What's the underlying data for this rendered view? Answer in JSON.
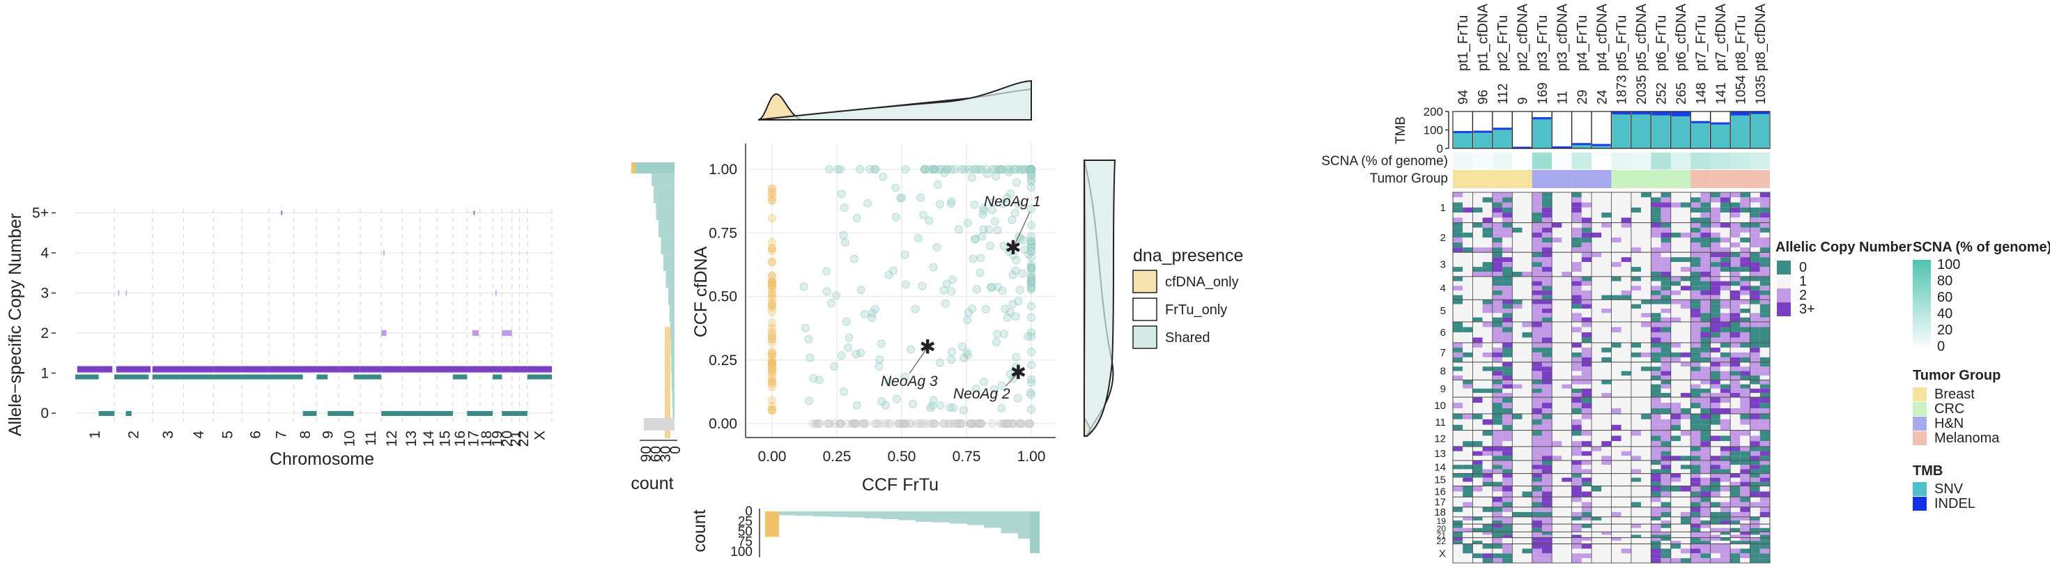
{
  "colors": {
    "teal": "#3a8a86",
    "light_teal": "#9fd0c8",
    "orange": "#f2c26b",
    "beige": "#f7e3b0",
    "purple": "#7b3fc4",
    "lavender": "#c29ae6",
    "grey": "#c8c8c8",
    "cyan": "#4fc0c8",
    "blue": "#1530e6",
    "breast": "#f7e3a0",
    "crc": "#c8f2c0",
    "hn": "#a8a8ec",
    "melanoma": "#f2c0b0"
  },
  "chart_data": [
    {
      "type": "scatter",
      "xlabel": "Chromosome",
      "ylabel": "Allele−specific Copy Number",
      "ytick_labels": [
        "0",
        "1",
        "2",
        "3",
        "4",
        "5+"
      ],
      "yvalues": [
        0,
        1,
        2,
        3,
        4,
        5
      ],
      "xtick_labels": [
        "1",
        "2",
        "3",
        "4",
        "5",
        "6",
        "7",
        "8",
        "9",
        "10",
        "11",
        "12",
        "13",
        "14",
        "15",
        "16",
        "17",
        "18",
        "19",
        "20",
        "21",
        "22",
        "X"
      ],
      "chrom_sizes_mb": [
        249,
        243,
        198,
        190,
        181,
        171,
        159,
        146,
        141,
        136,
        135,
        133,
        114,
        107,
        102,
        90,
        83,
        80,
        59,
        64,
        47,
        51,
        156
      ],
      "segments": [
        {
          "chrom": 1,
          "start": 0.05,
          "end": 0.95,
          "cn": 1,
          "allele": "major"
        },
        {
          "chrom": 2,
          "start": 0.05,
          "end": 0.95,
          "cn": 1,
          "allele": "major"
        },
        {
          "chrom": 3,
          "start": 0.0,
          "end": 1.0,
          "cn": 1,
          "allele": "major"
        },
        {
          "chrom": 4,
          "start": 0.0,
          "end": 1.0,
          "cn": 1,
          "allele": "major"
        },
        {
          "chrom": 5,
          "start": 0.0,
          "end": 1.0,
          "cn": 1,
          "allele": "major"
        },
        {
          "chrom": 6,
          "start": 0.0,
          "end": 1.0,
          "cn": 1,
          "allele": "major"
        },
        {
          "chrom": 7,
          "start": 0.0,
          "end": 1.0,
          "cn": 1,
          "allele": "major"
        },
        {
          "chrom": 8,
          "start": 0.0,
          "end": 1.0,
          "cn": 1,
          "allele": "major"
        },
        {
          "chrom": 9,
          "start": 0.0,
          "end": 1.0,
          "cn": 1,
          "allele": "major"
        },
        {
          "chrom": 10,
          "start": 0.0,
          "end": 1.0,
          "cn": 1,
          "allele": "major"
        },
        {
          "chrom": 11,
          "start": 0.0,
          "end": 1.0,
          "cn": 1,
          "allele": "major"
        },
        {
          "chrom": 12,
          "start": 0.0,
          "end": 1.0,
          "cn": 1,
          "allele": "major"
        },
        {
          "chrom": 13,
          "start": 0.0,
          "end": 1.0,
          "cn": 1,
          "allele": "major"
        },
        {
          "chrom": 14,
          "start": 0.0,
          "end": 1.0,
          "cn": 1,
          "allele": "major"
        },
        {
          "chrom": 15,
          "start": 0.0,
          "end": 1.0,
          "cn": 1,
          "allele": "major"
        },
        {
          "chrom": 16,
          "start": 0.0,
          "end": 1.0,
          "cn": 1,
          "allele": "major"
        },
        {
          "chrom": 17,
          "start": 0.0,
          "end": 1.0,
          "cn": 1,
          "allele": "major"
        },
        {
          "chrom": 18,
          "start": 0.0,
          "end": 1.0,
          "cn": 1,
          "allele": "major"
        },
        {
          "chrom": 19,
          "start": 0.0,
          "end": 1.0,
          "cn": 1,
          "allele": "major"
        },
        {
          "chrom": 20,
          "start": 0.0,
          "end": 1.0,
          "cn": 1,
          "allele": "major"
        },
        {
          "chrom": 21,
          "start": 0.0,
          "end": 1.0,
          "cn": 1,
          "allele": "major"
        },
        {
          "chrom": 22,
          "start": 0.0,
          "end": 1.0,
          "cn": 1,
          "allele": "major"
        },
        {
          "chrom": 23,
          "start": 0.0,
          "end": 1.0,
          "cn": 1,
          "allele": "major"
        },
        {
          "chrom": 1,
          "start": 0.0,
          "end": 0.6,
          "cn": 1,
          "allele": "minor"
        },
        {
          "chrom": 1,
          "start": 0.6,
          "end": 1.0,
          "cn": 0,
          "allele": "minor"
        },
        {
          "chrom": 2,
          "start": 0.0,
          "end": 0.9,
          "cn": 1,
          "allele": "minor"
        },
        {
          "chrom": 2,
          "start": 0.3,
          "end": 0.45,
          "cn": 0,
          "allele": "minor"
        },
        {
          "chrom": 3,
          "start": 0.0,
          "end": 1.0,
          "cn": 1,
          "allele": "minor"
        },
        {
          "chrom": 4,
          "start": 0.0,
          "end": 1.0,
          "cn": 1,
          "allele": "minor"
        },
        {
          "chrom": 5,
          "start": 0.0,
          "end": 1.0,
          "cn": 1,
          "allele": "minor"
        },
        {
          "chrom": 6,
          "start": 0.0,
          "end": 1.0,
          "cn": 1,
          "allele": "minor"
        },
        {
          "chrom": 7,
          "start": 0.0,
          "end": 1.0,
          "cn": 1,
          "allele": "minor"
        },
        {
          "chrom": 8,
          "start": 0.0,
          "end": 0.4,
          "cn": 1,
          "allele": "minor"
        },
        {
          "chrom": 8,
          "start": 0.4,
          "end": 1.0,
          "cn": 0,
          "allele": "minor"
        },
        {
          "chrom": 9,
          "start": 0.0,
          "end": 0.5,
          "cn": 1,
          "allele": "minor"
        },
        {
          "chrom": 9,
          "start": 0.5,
          "end": 1.0,
          "cn": 0,
          "allele": "minor"
        },
        {
          "chrom": 10,
          "start": 0.0,
          "end": 0.7,
          "cn": 0,
          "allele": "minor"
        },
        {
          "chrom": 10,
          "start": 0.7,
          "end": 1.0,
          "cn": 1,
          "allele": "minor"
        },
        {
          "chrom": 11,
          "start": 0.0,
          "end": 1.0,
          "cn": 1,
          "allele": "minor"
        },
        {
          "chrom": 12,
          "start": 0.0,
          "end": 1.0,
          "cn": 0,
          "allele": "minor"
        },
        {
          "chrom": 13,
          "start": 0.0,
          "end": 1.0,
          "cn": 0,
          "allele": "minor"
        },
        {
          "chrom": 14,
          "start": 0.0,
          "end": 1.0,
          "cn": 0,
          "allele": "minor"
        },
        {
          "chrom": 15,
          "start": 0.0,
          "end": 1.0,
          "cn": 0,
          "allele": "minor"
        },
        {
          "chrom": 16,
          "start": 0.0,
          "end": 1.0,
          "cn": 1,
          "allele": "minor"
        },
        {
          "chrom": 17,
          "start": 0.0,
          "end": 1.0,
          "cn": 0,
          "allele": "minor"
        },
        {
          "chrom": 18,
          "start": 0.0,
          "end": 1.0,
          "cn": 0,
          "allele": "minor"
        },
        {
          "chrom": 19,
          "start": 0.0,
          "end": 1.0,
          "cn": 1,
          "allele": "minor"
        },
        {
          "chrom": 20,
          "start": 0.0,
          "end": 1.0,
          "cn": 0,
          "allele": "minor"
        },
        {
          "chrom": 21,
          "start": 0.0,
          "end": 1.0,
          "cn": 0,
          "allele": "minor"
        },
        {
          "chrom": 22,
          "start": 0.0,
          "end": 1.0,
          "cn": 0,
          "allele": "minor"
        },
        {
          "chrom": 23,
          "start": 0.0,
          "end": 1.0,
          "cn": 1,
          "allele": "minor"
        },
        {
          "chrom": 12,
          "start": 0.0,
          "end": 0.25,
          "cn": 2,
          "allele": "major"
        },
        {
          "chrom": 17,
          "start": 0.4,
          "end": 0.9,
          "cn": 2,
          "allele": "major"
        },
        {
          "chrom": 20,
          "start": 0.0,
          "end": 1.0,
          "cn": 2,
          "allele": "major"
        },
        {
          "chrom": 2,
          "start": 0.1,
          "end": 0.12,
          "cn": 3,
          "allele": "major"
        },
        {
          "chrom": 2,
          "start": 0.3,
          "end": 0.32,
          "cn": 3,
          "allele": "major"
        },
        {
          "chrom": 19,
          "start": 0.3,
          "end": 0.4,
          "cn": 3,
          "allele": "major"
        },
        {
          "chrom": 12,
          "start": 0.1,
          "end": 0.12,
          "cn": 4,
          "allele": "major"
        },
        {
          "chrom": 7,
          "start": 0.5,
          "end": 0.54,
          "cn": 5,
          "allele": "major"
        },
        {
          "chrom": 17,
          "start": 0.5,
          "end": 0.54,
          "cn": 5,
          "allele": "major"
        }
      ]
    },
    {
      "type": "scatter",
      "xlabel": "CCF FrTu",
      "ylabel": "CCF cfDNA",
      "xlim": [
        0,
        1
      ],
      "ylim": [
        0,
        1
      ],
      "xticks": [
        "0.00",
        "0.25",
        "0.50",
        "0.75",
        "1.00"
      ],
      "yticks": [
        "0.00",
        "0.25",
        "0.50",
        "0.75",
        "1.00"
      ],
      "legend_title": "dna_presence",
      "legend_position": "right",
      "categories": [
        "cfDNA_only",
        "FrTu_only",
        "Shared"
      ],
      "annotations": [
        {
          "label": "NeoAg 1",
          "x": 0.93,
          "y": 0.69
        },
        {
          "label": "NeoAg 2",
          "x": 0.95,
          "y": 0.2
        },
        {
          "label": "NeoAg 3",
          "x": 0.6,
          "y": 0.3
        }
      ],
      "marginal_top_label": "count",
      "marginal_top_ticks": [
        "0",
        "25",
        "50",
        "75",
        "100"
      ],
      "marginal_left_label": "count",
      "marginal_left_ticks": [
        "90",
        "60",
        "30",
        "0"
      ],
      "hist_x_cfDNA_only": [
        78
      ],
      "hist_x_shared": [
        4,
        6,
        8,
        10,
        12,
        15,
        18,
        22,
        28,
        30,
        35,
        40,
        50,
        70,
        90
      ],
      "hist_y_shared": [
        2,
        4,
        6,
        8,
        10,
        12,
        15,
        20,
        30,
        40,
        50,
        60,
        70,
        80,
        88
      ]
    },
    {
      "type": "heatmap",
      "samples": [
        "pt1_FrTu",
        "pt1_cfDNA",
        "pt2_FrTu",
        "pt2_cfDNA",
        "pt3_FrTu",
        "pt3_cfDNA",
        "pt4_FrTu",
        "pt4_cfDNA",
        "pt5_FrTu",
        "pt5_cfDNA",
        "pt6_FrTu",
        "pt6_cfDNA",
        "pt7_FrTu",
        "pt7_cfDNA",
        "pt8_FrTu",
        "pt8_cfDNA"
      ],
      "tmb_values": [
        "94",
        "96",
        "112",
        "9",
        "169",
        "11",
        "29",
        "24",
        "1873",
        "2035",
        "252",
        "265",
        "148",
        "141",
        "1054",
        "1035"
      ],
      "tmb_axis_label": "TMB",
      "tmb_ticks": [
        "0",
        "100",
        "200"
      ],
      "tmb_ylim": [
        0,
        200
      ],
      "tmb_snv": [
        88,
        90,
        100,
        8,
        150,
        10,
        25,
        22,
        160,
        160,
        200,
        200,
        140,
        135,
        200,
        200
      ],
      "tmb_indel": [
        6,
        6,
        12,
        1,
        19,
        1,
        4,
        2,
        40,
        40,
        52,
        65,
        8,
        6,
        54,
        35
      ],
      "scna_label": "SCNA (% of genome)",
      "scna_pct": [
        8,
        5,
        10,
        2,
        55,
        3,
        30,
        2,
        15,
        12,
        45,
        20,
        40,
        35,
        30,
        25
      ],
      "tumor_group_label": "Tumor Group",
      "tumor_group": [
        "Breast",
        "Breast",
        "Breast",
        "Breast",
        "H&N",
        "H&N",
        "H&N",
        "H&N",
        "CRC",
        "CRC",
        "CRC",
        "CRC",
        "Melanoma",
        "Melanoma",
        "Melanoma",
        "Melanoma"
      ],
      "chromosomes": [
        "1",
        "2",
        "3",
        "4",
        "5",
        "6",
        "7",
        "8",
        "9",
        "10",
        "11",
        "12",
        "13",
        "14",
        "15",
        "16",
        "17",
        "18",
        "19",
        "20",
        "21",
        "22",
        "X"
      ],
      "chrom_rel_sizes": [
        249,
        243,
        198,
        190,
        181,
        171,
        159,
        146,
        141,
        136,
        135,
        133,
        114,
        107,
        102,
        90,
        83,
        80,
        59,
        64,
        47,
        51,
        156
      ],
      "legends": {
        "allelic_cn": {
          "title": "Allelic Copy Number",
          "labels": [
            "0",
            "1",
            "2",
            "3+"
          ]
        },
        "scna": {
          "title": "SCNA (% of genome)",
          "ticks": [
            "100",
            "80",
            "60",
            "40",
            "20",
            "0"
          ]
        },
        "tumor_group": {
          "title": "Tumor Group",
          "labels": [
            "Breast",
            "CRC",
            "H&N",
            "Melanoma"
          ]
        },
        "tmb": {
          "title": "TMB",
          "labels": [
            "SNV",
            "INDEL"
          ]
        }
      }
    }
  ]
}
